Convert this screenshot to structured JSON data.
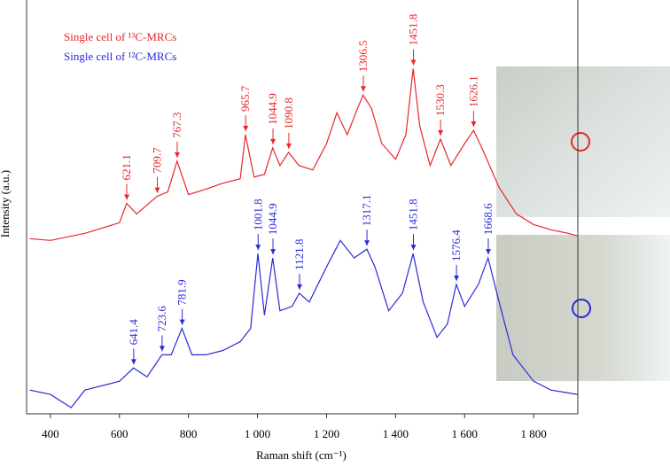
{
  "chart_data": {
    "type": "line",
    "xlabel": "Raman shift (cm⁻¹)",
    "ylabel": "Intensity (a.u.)",
    "xlim": [
      331,
      1928
    ],
    "ylim": [
      0,
      470
    ],
    "xticks": [
      400,
      600,
      800,
      {
        "value": 1000,
        "label": "1 000"
      },
      {
        "value": 1200,
        "label": "1 200"
      },
      {
        "value": 1400,
        "label": "1 400"
      },
      {
        "value": 1600,
        "label": "1 600"
      },
      {
        "value": 1800,
        "label": "1 800"
      }
    ],
    "series": [
      {
        "name": "Single cell of ¹³C-MRCs",
        "color": "#e8262a",
        "x": [
          340,
          400,
          500,
          600,
          621,
          650,
          709,
          740,
          767,
          800,
          850,
          900,
          950,
          965,
          990,
          1020,
          1044,
          1065,
          1090,
          1120,
          1160,
          1200,
          1230,
          1260,
          1290,
          1306,
          1330,
          1360,
          1400,
          1430,
          1451,
          1470,
          1500,
          1530,
          1560,
          1600,
          1626,
          1650,
          1700,
          1750,
          1800,
          1850,
          1900,
          1928
        ],
        "values": [
          199,
          197,
          205,
          217,
          239,
          227,
          247,
          252,
          287,
          249,
          255,
          262,
          267,
          317,
          269,
          272,
          302,
          282,
          297,
          282,
          277,
          307,
          342,
          317,
          347,
          362,
          347,
          307,
          289,
          317,
          392,
          327,
          282,
          312,
          282,
          307,
          322,
          302,
          257,
          227,
          215,
          209,
          205,
          202
        ],
        "peaks": [
          621.1,
          709.7,
          767.3,
          965.7,
          1044.9,
          1090.8,
          1306.5,
          1451.8,
          1530.3,
          1626.1
        ]
      },
      {
        "name": "Single cell of ¹²C-MRCs",
        "color": "#2a2ad6",
        "x": [
          340,
          400,
          460,
          500,
          600,
          641,
          680,
          723,
          750,
          781,
          810,
          850,
          900,
          950,
          980,
          1001,
          1020,
          1044,
          1065,
          1100,
          1121,
          1150,
          1200,
          1240,
          1280,
          1317,
          1340,
          1380,
          1420,
          1451,
          1480,
          1520,
          1550,
          1576,
          1600,
          1640,
          1668,
          1700,
          1740,
          1800,
          1850,
          1928
        ],
        "values": [
          27,
          22,
          7,
          27,
          37,
          52,
          42,
          67,
          67,
          97,
          67,
          67,
          72,
          82,
          97,
          182,
          112,
          177,
          117,
          122,
          137,
          127,
          167,
          197,
          177,
          187,
          167,
          117,
          137,
          182,
          127,
          87,
          102,
          147,
          122,
          147,
          177,
          127,
          67,
          37,
          27,
          22
        ],
        "peaks": [
          641.4,
          723.6,
          781.9,
          1001.8,
          1044.9,
          1121.8,
          1317.1,
          1451.8,
          1576.4,
          1668.6
        ]
      }
    ]
  }
}
